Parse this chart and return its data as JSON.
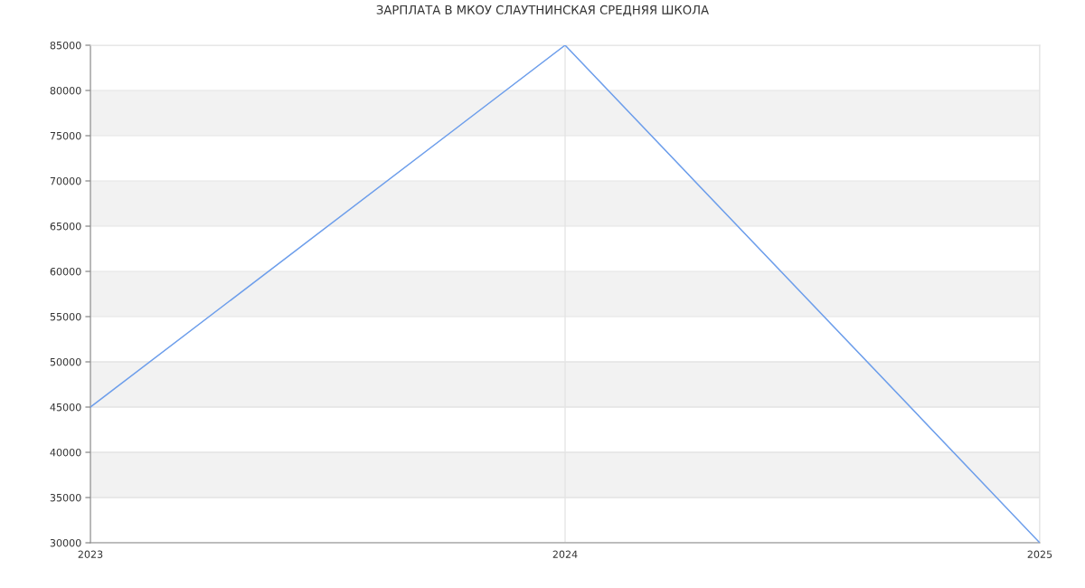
{
  "chart_data": {
    "type": "line",
    "title": "ЗАРПЛАТА В МКОУ СЛАУТНИНСКАЯ СРЕДНЯЯ ШКОЛА",
    "x": [
      2023,
      2024,
      2025
    ],
    "series": [
      {
        "color": "#6d9eeb",
        "values": [
          45000,
          85000,
          30000
        ]
      }
    ],
    "xlim": [
      2023,
      2025
    ],
    "xticks": [
      2023,
      2024,
      2025
    ],
    "ylim": [
      30000,
      85000
    ],
    "yticks": [
      30000,
      35000,
      40000,
      45000,
      50000,
      55000,
      60000,
      65000,
      70000,
      75000,
      80000,
      85000
    ],
    "grid": true,
    "marker": "none",
    "line_style": "solid",
    "bands": [
      {
        "axis": "y",
        "from": 35000,
        "to": 40000,
        "color": "#f2f2f2"
      },
      {
        "axis": "y",
        "from": 45000,
        "to": 50000,
        "color": "#f2f2f2"
      },
      {
        "axis": "y",
        "from": 55000,
        "to": 60000,
        "color": "#f2f2f2"
      },
      {
        "axis": "y",
        "from": 65000,
        "to": 70000,
        "color": "#f2f2f2"
      },
      {
        "axis": "y",
        "from": 75000,
        "to": 80000,
        "color": "#f2f2f2"
      }
    ]
  }
}
